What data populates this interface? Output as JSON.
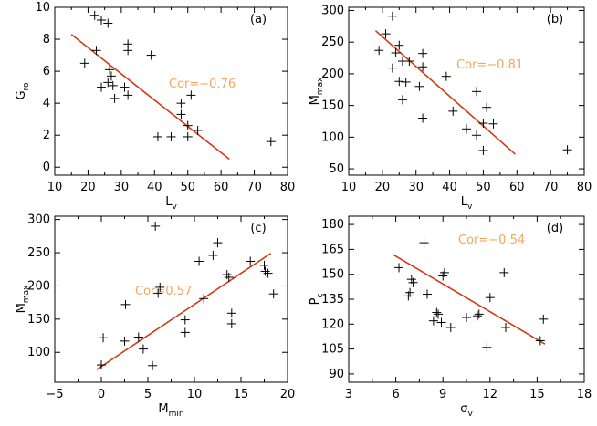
{
  "colors": {
    "fit_line": "#d23a12",
    "corr_text": "#f0a860",
    "markers": "#000000",
    "axes": "#000000"
  },
  "chart_data": [
    {
      "panel": "a",
      "type": "scatter",
      "tag": "(a)",
      "xlabel": "L",
      "xlabel_sub": "v",
      "ylabel": "G",
      "ylabel_sub": "ro",
      "xlim": [
        10,
        80
      ],
      "ylim": [
        -0.5,
        10
      ],
      "xticks": [
        10,
        20,
        30,
        40,
        50,
        60,
        70,
        80
      ],
      "yticks": [
        0,
        2,
        4,
        6,
        8,
        10
      ],
      "corr_label": "Cor=−0.76",
      "fit": {
        "x": [
          15,
          62.5
        ],
        "y": [
          8.3,
          0.5
        ]
      },
      "x": [
        19,
        22,
        24,
        26,
        22.5,
        24,
        26.5,
        26,
        27,
        27.5,
        28,
        31,
        32,
        32,
        32,
        39,
        41,
        45,
        48,
        48,
        50,
        50,
        51,
        53,
        75
      ],
      "y": [
        6.5,
        9.5,
        9.2,
        9.0,
        7.3,
        5.0,
        6.1,
        5.3,
        5.7,
        5.1,
        4.3,
        5.0,
        7.7,
        7.3,
        4.5,
        7.0,
        1.9,
        1.9,
        4.0,
        3.3,
        2.6,
        1.9,
        4.5,
        2.3,
        1.6
      ]
    },
    {
      "panel": "b",
      "type": "scatter",
      "tag": "(b)",
      "xlabel": "L",
      "xlabel_sub": "v",
      "ylabel": "M",
      "ylabel_sub": "max",
      "xlim": [
        10,
        80
      ],
      "ylim": [
        40,
        305
      ],
      "xticks": [
        10,
        20,
        30,
        40,
        50,
        60,
        70,
        80
      ],
      "yticks": [
        50,
        100,
        150,
        200,
        250,
        300
      ],
      "corr_label": "Cor=−0.81",
      "fit": {
        "x": [
          18,
          59.5
        ],
        "y": [
          268,
          73
        ]
      },
      "x": [
        19,
        21,
        23,
        24,
        25,
        26,
        23,
        25,
        26,
        27,
        28,
        31,
        32,
        32,
        32,
        39,
        41,
        45,
        48,
        48,
        50,
        50,
        51,
        53,
        75
      ],
      "y": [
        237,
        263,
        291,
        233,
        245,
        220,
        209,
        188,
        159,
        187,
        220,
        180,
        232,
        211,
        130,
        196,
        141,
        113,
        172,
        103,
        122,
        79,
        147,
        121,
        80
      ]
    },
    {
      "panel": "c",
      "type": "scatter",
      "tag": "(c)",
      "xlabel": "M",
      "xlabel_sub": "min",
      "ylabel": "M",
      "ylabel_sub": "max",
      "xlim": [
        -5,
        20
      ],
      "ylim": [
        55,
        305
      ],
      "xticks": [
        -5,
        0,
        5,
        10,
        15,
        20
      ],
      "yticks": [
        100,
        150,
        200,
        250,
        300
      ],
      "corr_label": "Cor=0.57",
      "fit": {
        "x": [
          -0.5,
          18.2
        ],
        "y": [
          74,
          249
        ]
      },
      "x": [
        0,
        0.2,
        2.5,
        2.6,
        4,
        4.5,
        5.5,
        5.8,
        6.1,
        6.3,
        9,
        9,
        10.5,
        11,
        12,
        12.5,
        13.5,
        13.7,
        14,
        14,
        16,
        17.5,
        17.6,
        17.9,
        18.5
      ],
      "y": [
        81,
        122,
        117,
        172,
        123,
        105,
        80,
        290,
        189,
        198,
        149,
        130,
        237,
        181,
        246,
        265,
        217,
        213,
        159,
        143,
        237,
        231,
        222,
        219,
        188
      ]
    },
    {
      "panel": "d",
      "type": "scatter",
      "tag": "(d)",
      "xlabel": "σ",
      "xlabel_sub": "v",
      "ylabel": "P",
      "ylabel_sub": "c",
      "xlim": [
        3,
        18
      ],
      "ylim": [
        85,
        185
      ],
      "xticks": [
        3,
        6,
        9,
        12,
        15,
        18
      ],
      "yticks": [
        90,
        105,
        120,
        135,
        150,
        165,
        180
      ],
      "corr_label": "Cor=−0.54",
      "fit": {
        "x": [
          5.8,
          15.5
        ],
        "y": [
          162,
          108
        ]
      },
      "x": [
        6.2,
        6.8,
        6.9,
        7.0,
        7.1,
        7.8,
        8.0,
        8.4,
        8.6,
        8.7,
        8.9,
        9.0,
        9.1,
        9.5,
        10.5,
        11.2,
        11.3,
        11.8,
        12.0,
        12.9,
        13.0,
        15.2,
        15.4
      ],
      "y": [
        154,
        137,
        139,
        147,
        145,
        169,
        138,
        122,
        127,
        126,
        121,
        149,
        151,
        118,
        124,
        125,
        126,
        106,
        136,
        151,
        118,
        110,
        123
      ]
    }
  ]
}
